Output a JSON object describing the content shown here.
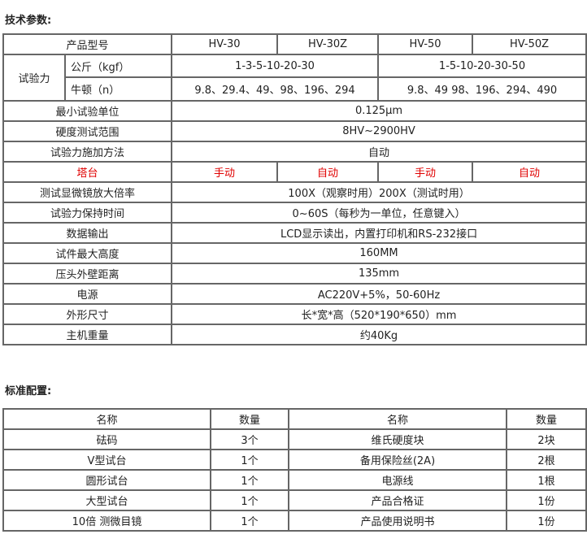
{
  "tech": {
    "title": "技术参数:",
    "model_label": "产品型号",
    "models": [
      "HV-30",
      "HV-30Z",
      "HV-50",
      "HV-50Z"
    ],
    "force_label": "试验力",
    "kgf_label": "公斤（kgf）",
    "kgf_values": [
      "1-3-5-10-20-30",
      "1-5-10-20-30-50"
    ],
    "n_label": "牛顿（n）",
    "n_values": [
      "9.8、29.4、49、98、196、294",
      "9.8、49 98、196、294、490"
    ],
    "rows_a": [
      {
        "label": "最小试验单位",
        "value": "0.125μm"
      },
      {
        "label": "硬度测试范围",
        "value": "8HV~2900HV"
      },
      {
        "label": "试验力施加方法",
        "value": "自动"
      }
    ],
    "turret_label": "塔台",
    "turret_values": [
      "手动",
      "自动",
      "手动",
      "自动"
    ],
    "rows_b": [
      {
        "label": "测试显微镜放大倍率",
        "value": "100X（观察时用）200X（测试时用）"
      },
      {
        "label": "试验力保持时间",
        "value": "0~60S（每秒为一单位，任意键入）"
      },
      {
        "label": "数据输出",
        "value": "LCD显示读出，内置打印机和RS-232接口"
      },
      {
        "label": "试件最大高度",
        "value": "160MM"
      },
      {
        "label": "压头外壁距离",
        "value": "135mm"
      },
      {
        "label": "电源",
        "value": "AC220V+5%，50-60Hz"
      },
      {
        "label": "外形尺寸",
        "value": "长*宽*高（520*190*650）mm"
      },
      {
        "label": "主机重量",
        "value": "约40Kg"
      }
    ],
    "accent_color": "#e00000"
  },
  "config": {
    "title": "标准配置:",
    "headers": [
      "名称",
      "数量",
      "名称",
      "数量"
    ],
    "rows": [
      [
        "砝码",
        "3个",
        "维氏硬度块",
        "2块"
      ],
      [
        "V型试台",
        "1个",
        "备用保险丝(2A)",
        "2根"
      ],
      [
        "圆形试台",
        "1个",
        "电源线",
        "1根"
      ],
      [
        "大型试台",
        "1个",
        "产品合格证",
        "1份"
      ],
      [
        "10倍 测微目镜",
        "1个",
        "产品使用说明书",
        "1份"
      ]
    ]
  }
}
